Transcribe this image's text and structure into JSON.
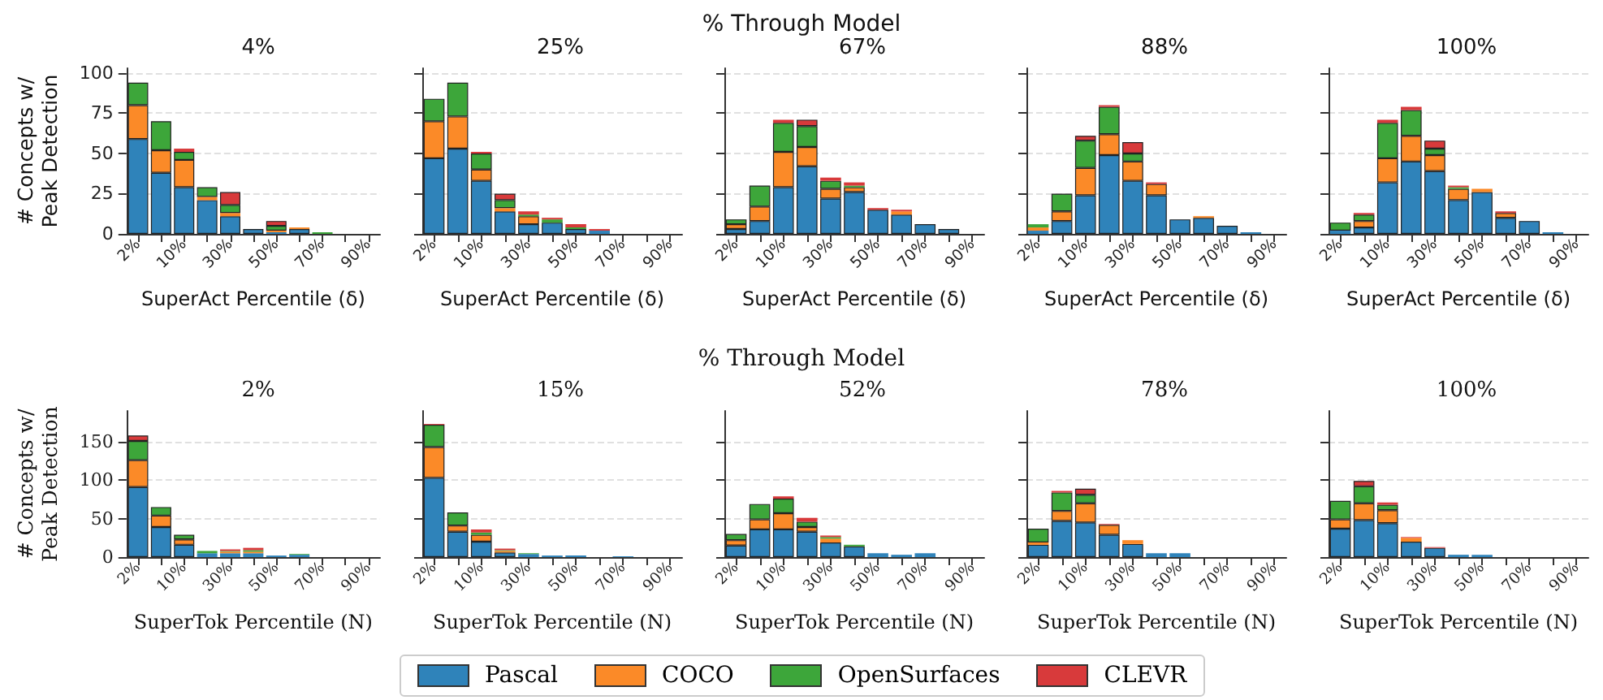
{
  "chart_data": [
    {
      "type": "bar",
      "stacked": true,
      "title": "4%",
      "annotations": [
        "% Through Model"
      ],
      "legend": "bottom",
      "xlabel": "SuperAct Percentile (δ)",
      "ylabel": "# Concepts w/\nPeak Detection",
      "categories": [
        "2%",
        null,
        "10%",
        null,
        "30%",
        null,
        "50%",
        null,
        "70%",
        null,
        "90%"
      ],
      "ylim": [
        0,
        103
      ],
      "yticks": [
        0,
        25,
        50,
        75,
        100
      ],
      "grid": "y",
      "series": [
        {
          "name": "Pascal",
          "color": "#2f83ba",
          "values": [
            59,
            38,
            29,
            21,
            11,
            3,
            1,
            3,
            null,
            null,
            null
          ]
        },
        {
          "name": "COCO",
          "color": "#fb8a28",
          "values": [
            21,
            14,
            17,
            2,
            2,
            null,
            1,
            1,
            null,
            null,
            null
          ]
        },
        {
          "name": "OpenSurfaces",
          "color": "#3da63a",
          "values": [
            14,
            18,
            5,
            6,
            5,
            null,
            3,
            null,
            1,
            null,
            null
          ]
        },
        {
          "name": "CLEVR",
          "color": "#d83a3b",
          "values": [
            null,
            null,
            2,
            null,
            8,
            null,
            3,
            null,
            null,
            null,
            null
          ]
        }
      ]
    },
    {
      "type": "bar",
      "stacked": true,
      "title": "25%",
      "xlabel": "SuperAct Percentile (δ)",
      "tick_labels": "x",
      "categories": [
        "2%",
        null,
        "10%",
        null,
        "30%",
        null,
        "50%",
        null,
        "70%",
        null,
        "90%"
      ],
      "ylim": [
        0,
        103
      ],
      "yticks": [
        0,
        25,
        50,
        75,
        100
      ],
      "grid": "y",
      "series": [
        {
          "color": "#2f83ba",
          "values": [
            47,
            53,
            33,
            14,
            6,
            7,
            3,
            2,
            null,
            null,
            null
          ]
        },
        {
          "color": "#fb8a28",
          "values": [
            23,
            20,
            7,
            2,
            5,
            null,
            null,
            null,
            null,
            null,
            null
          ]
        },
        {
          "color": "#3da63a",
          "values": [
            14,
            21,
            10,
            5,
            1,
            2,
            1,
            null,
            null,
            null,
            null
          ]
        },
        {
          "color": "#d83a3b",
          "values": [
            null,
            null,
            1,
            4,
            2,
            1,
            2,
            1,
            null,
            null,
            null
          ]
        }
      ]
    },
    {
      "type": "bar",
      "stacked": true,
      "title": "67%",
      "xlabel": "SuperAct Percentile (δ)",
      "tick_labels": "x",
      "categories": [
        "2%",
        null,
        "10%",
        null,
        "30%",
        null,
        "50%",
        null,
        "70%",
        null,
        "90%"
      ],
      "ylim": [
        0,
        103
      ],
      "yticks": [
        0,
        25,
        50,
        75,
        100
      ],
      "grid": "y",
      "series": [
        {
          "color": "#2f83ba",
          "values": [
            3,
            8,
            29,
            42,
            22,
            26,
            15,
            12,
            6,
            3,
            null
          ]
        },
        {
          "color": "#fb8a28",
          "values": [
            3,
            9,
            22,
            12,
            6,
            3,
            null,
            2,
            null,
            null,
            null
          ]
        },
        {
          "color": "#3da63a",
          "values": [
            3,
            13,
            18,
            13,
            5,
            1,
            null,
            null,
            null,
            null,
            null
          ]
        },
        {
          "color": "#d83a3b",
          "values": [
            null,
            null,
            2,
            4,
            2,
            2,
            1,
            1,
            null,
            null,
            null
          ]
        }
      ]
    },
    {
      "type": "bar",
      "stacked": true,
      "title": "88%",
      "xlabel": "SuperAct Percentile (δ)",
      "tick_labels": "x",
      "categories": [
        "2%",
        null,
        "10%",
        null,
        "30%",
        null,
        "50%",
        null,
        "70%",
        null,
        "90%"
      ],
      "ylim": [
        0,
        103
      ],
      "yticks": [
        0,
        25,
        50,
        75,
        100
      ],
      "grid": "y",
      "series": [
        {
          "color": "#2f83ba",
          "values": [
            2,
            8,
            24,
            49,
            33,
            24,
            9,
            10,
            5,
            1,
            null
          ]
        },
        {
          "color": "#fb8a28",
          "values": [
            2,
            6,
            17,
            13,
            12,
            7,
            null,
            1,
            null,
            null,
            null
          ]
        },
        {
          "color": "#3da63a",
          "values": [
            2,
            11,
            17,
            17,
            5,
            null,
            null,
            null,
            null,
            null,
            null
          ]
        },
        {
          "color": "#d83a3b",
          "values": [
            null,
            null,
            3,
            1,
            7,
            1,
            null,
            null,
            null,
            null,
            null
          ]
        }
      ]
    },
    {
      "type": "bar",
      "stacked": true,
      "title": "100%",
      "xlabel": "SuperAct Percentile (δ)",
      "tick_labels": "x",
      "categories": [
        "2%",
        null,
        "10%",
        null,
        "30%",
        null,
        "50%",
        null,
        "70%",
        null,
        "90%"
      ],
      "ylim": [
        0,
        103
      ],
      "yticks": [
        0,
        25,
        50,
        75,
        100
      ],
      "grid": "y",
      "series": [
        {
          "color": "#2f83ba",
          "values": [
            2,
            4,
            32,
            45,
            39,
            21,
            26,
            10,
            8,
            1,
            null
          ]
        },
        {
          "color": "#fb8a28",
          "values": [
            null,
            4,
            15,
            16,
            10,
            7,
            2,
            3,
            null,
            null,
            null
          ]
        },
        {
          "color": "#3da63a",
          "values": [
            5,
            4,
            22,
            16,
            4,
            1,
            null,
            null,
            null,
            null,
            null
          ]
        },
        {
          "color": "#d83a3b",
          "values": [
            null,
            1,
            2,
            2,
            5,
            1,
            null,
            1,
            null,
            null,
            null
          ]
        }
      ]
    },
    {
      "type": "bar",
      "stacked": true,
      "title": "2%",
      "annotations": [
        "% Through Model"
      ],
      "xlabel": "SuperTok Percentile (N)",
      "ylabel": "# Concepts w/\nPeak Detection",
      "categories": [
        "2%",
        null,
        "10%",
        null,
        "30%",
        null,
        "50%",
        null,
        "70%",
        null,
        "90%"
      ],
      "ylim": [
        0,
        190
      ],
      "yticks": [
        0,
        50,
        100,
        150
      ],
      "grid": "y",
      "series": [
        {
          "color": "#2f83ba",
          "values": [
            91,
            39,
            16,
            5,
            5,
            5,
            2,
            3,
            null,
            null,
            null
          ]
        },
        {
          "color": "#fb8a28",
          "values": [
            35,
            15,
            7,
            null,
            2,
            2,
            null,
            null,
            null,
            null,
            null
          ]
        },
        {
          "color": "#3da63a",
          "values": [
            25,
            11,
            6,
            3,
            1,
            2,
            null,
            1,
            null,
            null,
            null
          ]
        },
        {
          "color": "#d83a3b",
          "values": [
            7,
            null,
            null,
            null,
            2,
            3,
            null,
            null,
            null,
            null,
            null
          ]
        }
      ]
    },
    {
      "type": "bar",
      "stacked": true,
      "title": "15%",
      "xlabel": "SuperTok Percentile (N)",
      "tick_labels": "x",
      "categories": [
        "2%",
        null,
        "10%",
        null,
        "30%",
        null,
        "50%",
        null,
        "70%",
        null,
        "90%"
      ],
      "ylim": [
        0,
        190
      ],
      "yticks": [
        0,
        50,
        100,
        150
      ],
      "grid": "y",
      "series": [
        {
          "color": "#2f83ba",
          "values": [
            103,
            33,
            20,
            6,
            4,
            2,
            2,
            null,
            1,
            null,
            null
          ]
        },
        {
          "color": "#fb8a28",
          "values": [
            40,
            8,
            9,
            2,
            null,
            null,
            null,
            null,
            null,
            null,
            null
          ]
        },
        {
          "color": "#3da63a",
          "values": [
            29,
            17,
            3,
            1,
            1,
            null,
            null,
            null,
            null,
            null,
            null
          ]
        },
        {
          "color": "#d83a3b",
          "values": [
            1,
            null,
            4,
            2,
            null,
            null,
            null,
            null,
            null,
            null,
            null
          ]
        }
      ]
    },
    {
      "type": "bar",
      "stacked": true,
      "title": "52%",
      "xlabel": "SuperTok Percentile (N)",
      "tick_labels": "x",
      "categories": [
        "2%",
        null,
        "10%",
        null,
        "30%",
        null,
        "50%",
        null,
        "70%",
        null,
        "90%"
      ],
      "ylim": [
        0,
        190
      ],
      "yticks": [
        0,
        50,
        100,
        150
      ],
      "grid": "y",
      "series": [
        {
          "color": "#2f83ba",
          "values": [
            15,
            36,
            36,
            33,
            19,
            14,
            5,
            3,
            5,
            null,
            null
          ]
        },
        {
          "color": "#fb8a28",
          "values": [
            7,
            13,
            21,
            6,
            5,
            null,
            null,
            null,
            null,
            null,
            null
          ]
        },
        {
          "color": "#3da63a",
          "values": [
            8,
            20,
            19,
            7,
            2,
            2,
            null,
            null,
            null,
            null,
            null
          ]
        },
        {
          "color": "#d83a3b",
          "values": [
            null,
            null,
            3,
            5,
            2,
            null,
            null,
            null,
            null,
            null,
            null
          ]
        }
      ]
    },
    {
      "type": "bar",
      "stacked": true,
      "title": "78%",
      "xlabel": "SuperTok Percentile (N)",
      "tick_labels": "x",
      "categories": [
        "2%",
        null,
        "10%",
        null,
        "30%",
        null,
        "50%",
        null,
        "70%",
        null,
        "90%"
      ],
      "ylim": [
        0,
        190
      ],
      "yticks": [
        0,
        50,
        100,
        150
      ],
      "grid": "y",
      "series": [
        {
          "color": "#2f83ba",
          "values": [
            16,
            47,
            45,
            29,
            17,
            5,
            5,
            null,
            null,
            null,
            null
          ]
        },
        {
          "color": "#fb8a28",
          "values": [
            3,
            13,
            25,
            13,
            5,
            null,
            null,
            null,
            null,
            null,
            null
          ]
        },
        {
          "color": "#3da63a",
          "values": [
            18,
            24,
            11,
            null,
            null,
            null,
            null,
            null,
            null,
            null,
            null
          ]
        },
        {
          "color": "#d83a3b",
          "values": [
            null,
            2,
            8,
            1,
            null,
            null,
            null,
            null,
            null,
            null,
            null
          ]
        }
      ]
    },
    {
      "type": "bar",
      "stacked": true,
      "title": "100%",
      "xlabel": "SuperTok Percentile (N)",
      "tick_labels": "x",
      "categories": [
        "2%",
        null,
        "10%",
        null,
        "30%",
        null,
        "50%",
        null,
        "70%",
        null,
        "90%"
      ],
      "ylim": [
        0,
        190
      ],
      "yticks": [
        0,
        50,
        100,
        150
      ],
      "grid": "y",
      "series": [
        {
          "color": "#2f83ba",
          "values": [
            37,
            48,
            44,
            20,
            12,
            3,
            3,
            null,
            null,
            null,
            null
          ]
        },
        {
          "color": "#fb8a28",
          "values": [
            12,
            22,
            17,
            5,
            null,
            null,
            null,
            null,
            null,
            null,
            null
          ]
        },
        {
          "color": "#3da63a",
          "values": [
            24,
            22,
            7,
            null,
            null,
            null,
            null,
            null,
            null,
            null,
            null
          ]
        },
        {
          "color": "#d83a3b",
          "values": [
            null,
            7,
            3,
            1,
            1,
            null,
            null,
            null,
            null,
            null,
            null
          ]
        }
      ]
    }
  ]
}
